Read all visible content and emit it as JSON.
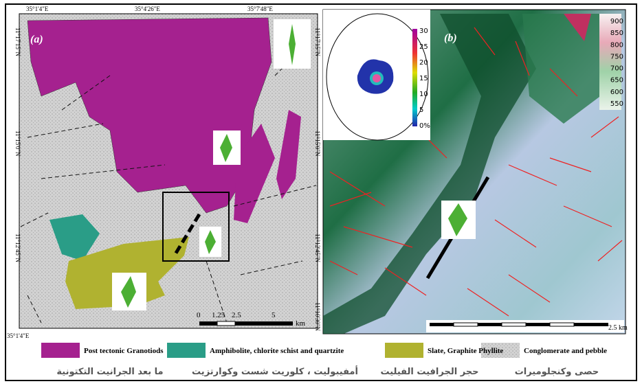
{
  "panel_a": {
    "label": "(a)",
    "top_coords": [
      "35°1'4\"E",
      "35°4'26\"E",
      "35°7'48\"E"
    ],
    "bottom_coord": "35°1'4\"E",
    "left_coords": [
      "11°17'15\"N",
      "11°15'0\"N",
      "11°12'45\"N"
    ],
    "right_coords": [
      "11°17'15\"N",
      "11°15'0\"N",
      "11°12'45\"N",
      "11°10'30\"N"
    ],
    "scale": [
      "0",
      "1.25",
      "2.5",
      "5",
      "km"
    ]
  },
  "panel_b": {
    "label": "(b)",
    "scale": "2.5 km",
    "elevation_ticks": [
      900,
      850,
      800,
      750,
      700,
      650,
      600,
      550
    ],
    "density_ticks": [
      30,
      25,
      20,
      15,
      10,
      5,
      "0%"
    ]
  },
  "legend": [
    "Post tectonic Granotiods",
    "Amphibolite, chlorite schist and quartzite",
    "Slate, Graphite Phyllite",
    "Conglomerate and pebble"
  ],
  "legend_arabic": [
    "ما بعد الجرانيت التكتونية",
    "أمفيبوليت ، كلوريت شست وكوارتزيت",
    "حجر الجرافيت الفيليت",
    "حصى وكنجلوميرات"
  ]
}
